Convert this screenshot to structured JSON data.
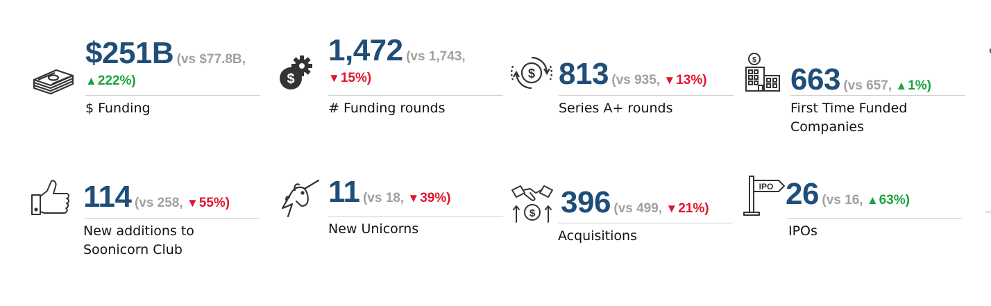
{
  "colors": {
    "value": "#1f4e79",
    "comparison": "#a0a0a0",
    "up": "#1aa33f",
    "down": "#e0152b"
  },
  "metrics": [
    {
      "icon": "money-stack-icon",
      "value": "$251B",
      "vs": "(vs $77.8B,",
      "direction": "up",
      "arrow": "▲",
      "change": "222%)",
      "label": "$ Funding"
    },
    {
      "icon": "dollar-gear-icon",
      "value": "1,472",
      "vs": "(vs 1,743,",
      "direction": "down",
      "arrow": "▼",
      "change": "15%)",
      "label": "# Funding rounds"
    },
    {
      "icon": "dollar-cycle-icon",
      "value": "813",
      "vs": "(vs 935,",
      "direction": "down",
      "arrow": "▼",
      "change": "13%)",
      "label": "Series A+ rounds"
    },
    {
      "icon": "building-dollar-icon",
      "value": "663",
      "vs": "(vs 657,",
      "direction": "up",
      "arrow": "▲",
      "change": "1%)",
      "label": "First Time Funded Companies"
    },
    {
      "icon": "thumbs-up-icon",
      "value": "114",
      "vs": "(vs 258,",
      "direction": "down",
      "arrow": "▼",
      "change": "55%)",
      "label": "New additions to Soonicorn Club"
    },
    {
      "icon": "unicorn-icon",
      "value": "11",
      "vs": "(vs 18,",
      "direction": "down",
      "arrow": "▼",
      "change": "39%)",
      "label": "New Unicorns"
    },
    {
      "icon": "handshake-dollar-icon",
      "value": "396",
      "vs": "(vs 499,",
      "direction": "down",
      "arrow": "▼",
      "change": "21%)",
      "label": "Acquisitions"
    },
    {
      "icon": "ipo-sign-icon",
      "value": "26",
      "vs": "(vs 16,",
      "direction": "up",
      "arrow": "▲",
      "change": "63%)",
      "label": "IPOs"
    }
  ]
}
